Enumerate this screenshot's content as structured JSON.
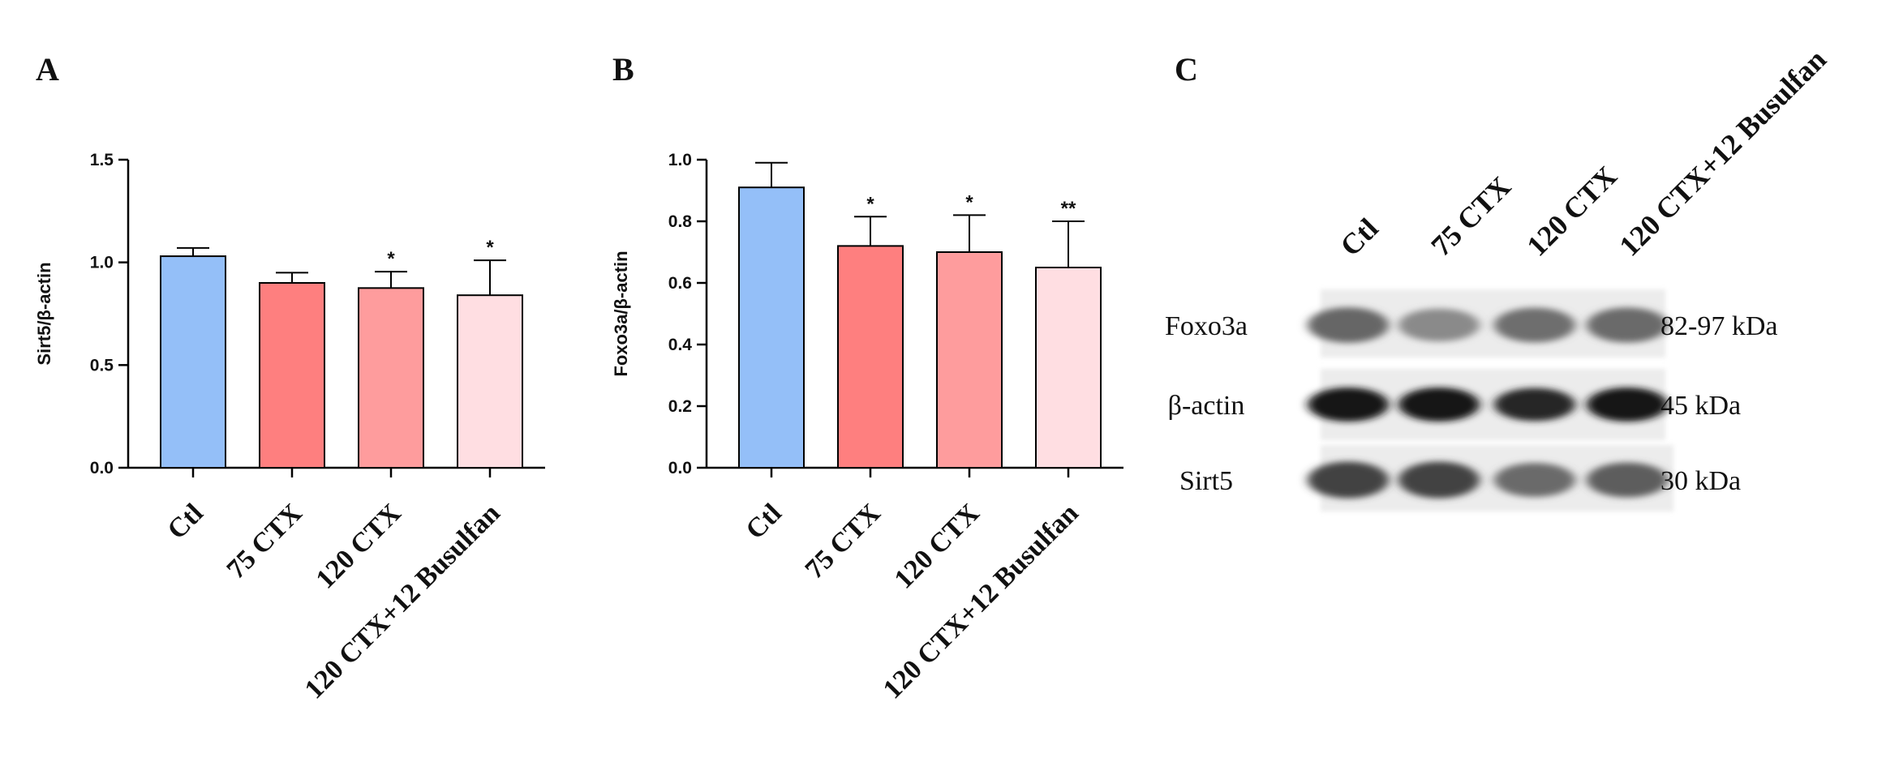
{
  "panels": {
    "a": "A",
    "b": "B",
    "c": "C"
  },
  "chart_data": [
    {
      "type": "bar",
      "panel": "A",
      "ylabel": "Sirt5/β-actin",
      "ylim": [
        0,
        1.5
      ],
      "yticks": [
        "0.0",
        "0.5",
        "1.0",
        "1.5"
      ],
      "ytick_values": [
        0,
        0.5,
        1.0,
        1.5
      ],
      "categories": [
        "Ctl",
        "75 CTX",
        "120 CTX",
        "120 CTX+12 Busulfan"
      ],
      "values": [
        1.03,
        0.9,
        0.875,
        0.84
      ],
      "errors": [
        0.04,
        0.05,
        0.08,
        0.17
      ],
      "significance": [
        "",
        "",
        "*",
        "*"
      ],
      "colors": [
        "#94bff8",
        "#fe7f7f",
        "#fe9c9d",
        "#ffdee2"
      ]
    },
    {
      "type": "bar",
      "panel": "B",
      "ylabel": "Foxo3a/β-actin",
      "ylim": [
        0,
        1.0
      ],
      "yticks": [
        "0.0",
        "0.2",
        "0.4",
        "0.6",
        "0.8",
        "1.0"
      ],
      "ytick_values": [
        0,
        0.2,
        0.4,
        0.6,
        0.8,
        1.0
      ],
      "categories": [
        "Ctl",
        "75 CTX",
        "120 CTX",
        "120 CTX+12 Busulfan"
      ],
      "values": [
        0.91,
        0.72,
        0.7,
        0.65
      ],
      "errors": [
        0.08,
        0.095,
        0.12,
        0.15
      ],
      "significance": [
        "",
        "*",
        "*",
        "**"
      ],
      "colors": [
        "#94bff8",
        "#fe7f7f",
        "#fe9c9d",
        "#ffdee2"
      ]
    }
  ],
  "blot": {
    "lanes": [
      "Ctl",
      "75 CTX",
      "120 CTX",
      "120 CTX+12 Busulfan"
    ],
    "rows": [
      {
        "protein": "Foxo3a",
        "size": "82-97 kDa",
        "intensity": [
          0.62,
          0.45,
          0.58,
          0.6
        ]
      },
      {
        "protein": "β-actin",
        "size": "45 kDa",
        "intensity": [
          1.0,
          1.0,
          0.92,
          1.0
        ]
      },
      {
        "protein": "Sirt5",
        "size": "30 kDa",
        "intensity": [
          0.78,
          0.78,
          0.6,
          0.66
        ]
      }
    ]
  }
}
